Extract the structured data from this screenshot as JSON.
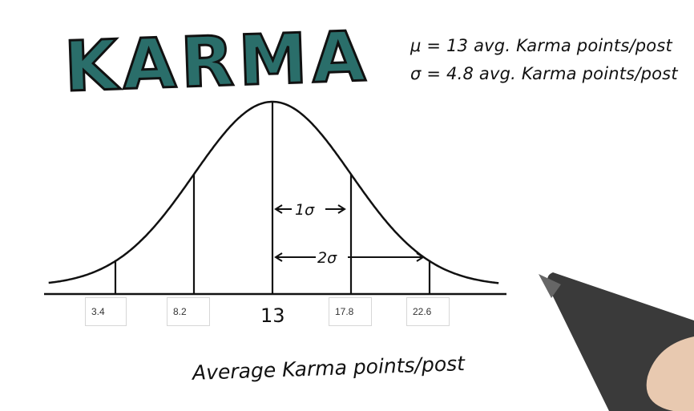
{
  "title": "KARMA",
  "stats": {
    "mu_line": "μ = 13 avg. Karma points/post",
    "sigma_line": "σ = 4.8 avg. Karma points/post"
  },
  "chart_data": {
    "type": "normal-distribution",
    "mean": 13,
    "sd": 4.8,
    "xlabel": "Average Karma points/post",
    "tick_labels": [
      "3.4",
      "8.2",
      "13",
      "17.8",
      "22.6"
    ],
    "ticks": [
      3.4,
      8.2,
      13,
      17.8,
      22.6
    ],
    "annotations": [
      "1σ",
      "2σ"
    ]
  },
  "colors": {
    "title_fill": "#2a6e6a",
    "title_stroke": "#111111",
    "ink": "#111111"
  }
}
